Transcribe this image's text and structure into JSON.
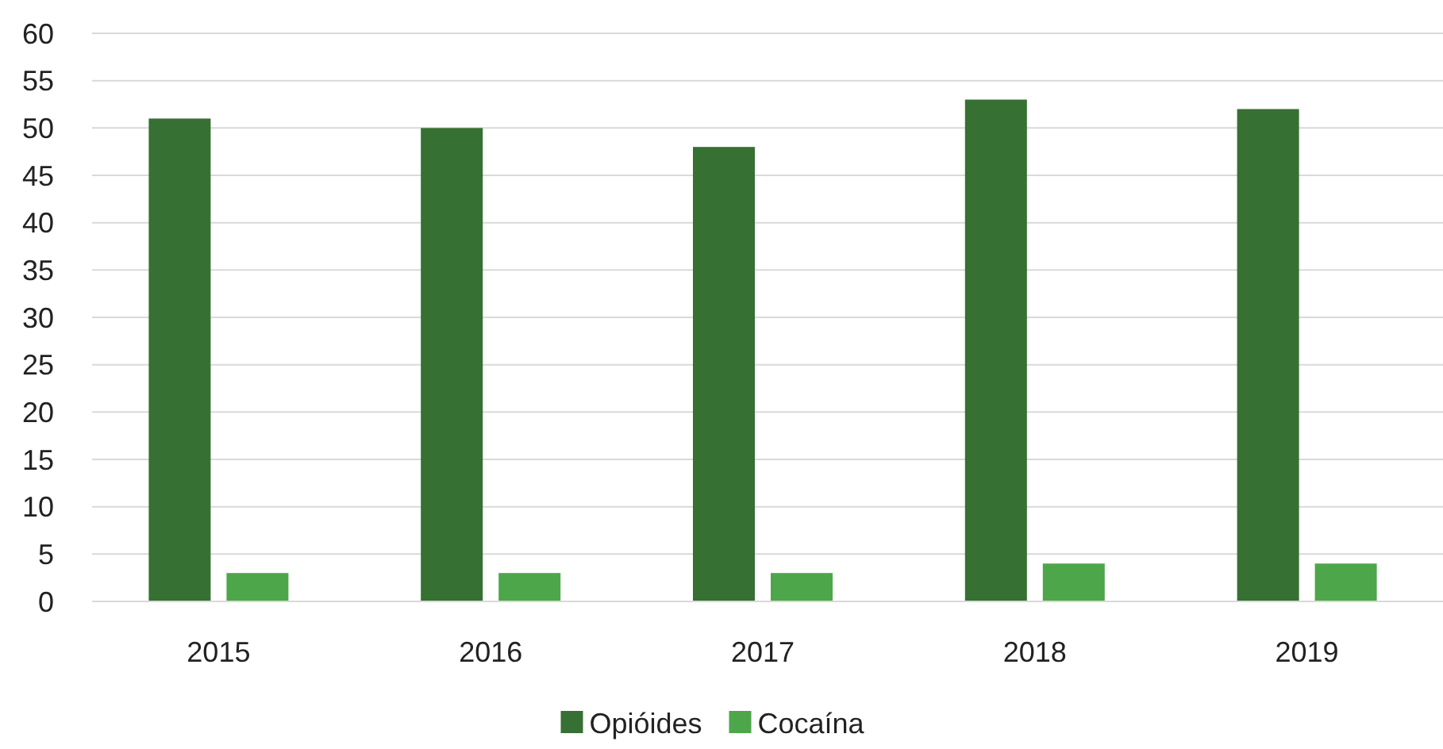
{
  "chart_data": {
    "type": "bar",
    "categories": [
      "2015",
      "2016",
      "2017",
      "2018",
      "2019"
    ],
    "series": [
      {
        "name": "Opióides",
        "color": "#367033",
        "values": [
          51,
          50,
          48,
          53,
          52
        ]
      },
      {
        "name": "Cocaína",
        "color": "#4ea64a",
        "values": [
          3,
          3,
          3,
          4,
          4
        ]
      }
    ],
    "ylim": [
      0,
      60
    ],
    "yticks": [
      0,
      5,
      10,
      15,
      20,
      25,
      30,
      35,
      40,
      45,
      50,
      55,
      60
    ],
    "grid": "y",
    "legend": "bottom"
  }
}
